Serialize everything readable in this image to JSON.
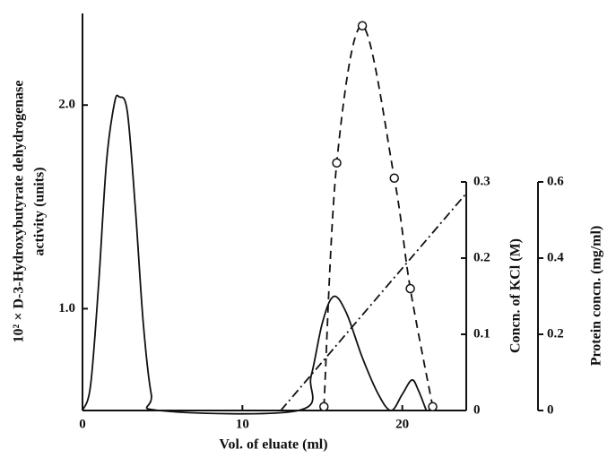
{
  "chart_data": {
    "type": "line",
    "xlabel": "Vol. of eluate (ml)",
    "ylabel": [
      "10² × D-3-Hydroxybutyrate dehydrogenase",
      "activity (units)"
    ],
    "y2label": "Concn. of KCl (M)",
    "y3label": "Protein concn. (mg/ml)",
    "xlim": [
      0,
      24
    ],
    "xticks": [
      0,
      10,
      20
    ],
    "ylim": [
      0.5,
      2.45
    ],
    "yticks": [
      {
        "value": 1,
        "label": "1.0"
      },
      {
        "value": 2,
        "label": "2.0"
      }
    ],
    "y2lim": [
      0,
      0.3
    ],
    "y2ticks": [
      0,
      0.1,
      0.2,
      0.3
    ],
    "y3lim": [
      0,
      0.6
    ],
    "y3ticks": [
      0,
      0.2,
      0.4,
      0.6
    ],
    "series": [
      {
        "style": "solid",
        "color": "#111",
        "axis": "y",
        "x": [
          0,
          0.5,
          1,
          1.5,
          2,
          2.3,
          2.8,
          3.3,
          3.8,
          4.3,
          4.8,
          13.5,
          14.3,
          15,
          15.7,
          16.5,
          17.5,
          18.5,
          19.3,
          20,
          20.6,
          21,
          21.5
        ],
        "values": [
          0.5,
          0.62,
          1.11,
          1.72,
          2.01,
          2.04,
          1.97,
          1.5,
          0.93,
          0.58,
          0.5,
          0.5,
          0.67,
          0.93,
          1.06,
          0.98,
          0.76,
          0.58,
          0.5,
          0.58,
          0.65,
          0.6,
          0.5
        ]
      },
      {
        "style": "dashdot",
        "color": "#111",
        "axis": "y2",
        "x": [
          12.4,
          24
        ],
        "values": [
          0,
          0.285
        ]
      },
      {
        "style": "dashed",
        "color": "#111",
        "axis": "y3",
        "markers": true,
        "x": [
          15.1,
          15.9,
          17.5,
          19.5,
          20.5,
          21.9
        ],
        "values": [
          0.01,
          0.65,
          1.01,
          0.61,
          0.32,
          0.01
        ]
      }
    ]
  }
}
